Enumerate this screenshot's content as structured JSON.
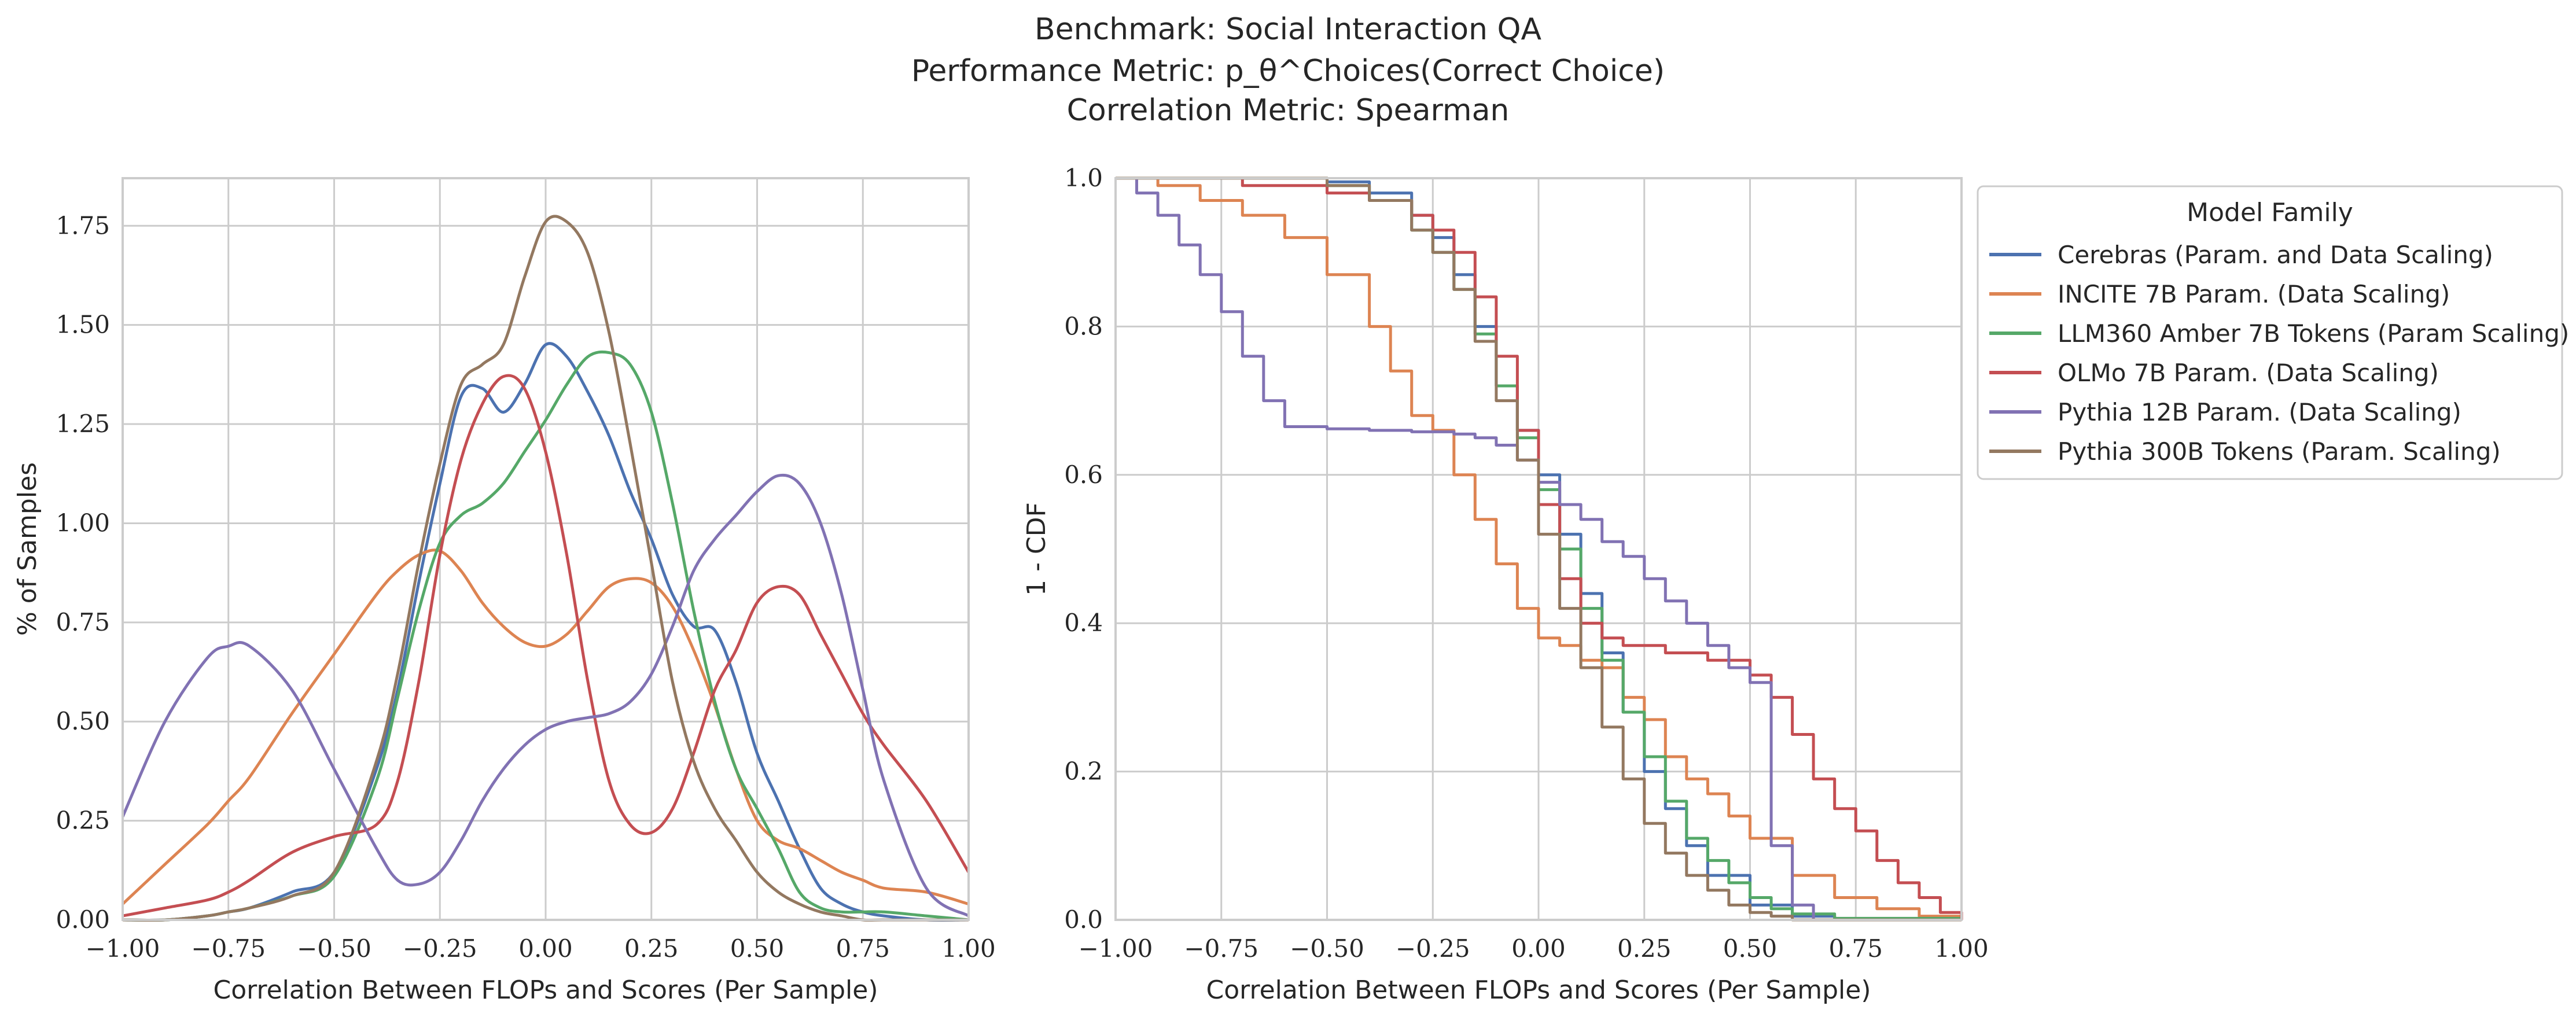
{
  "figure": {
    "title_lines": [
      "Benchmark: Social Interaction QA",
      "Performance Metric: p_θ^Choices(Correct Choice)",
      "Correlation Metric: Spearman"
    ]
  },
  "chart_data": [
    {
      "type": "line",
      "subtype": "kde",
      "title": "",
      "xlabel": "Correlation Between FLOPs and Scores (Per Sample)",
      "ylabel": "% of Samples",
      "xlim": [
        -1.0,
        1.0
      ],
      "ylim": [
        0.0,
        1.87
      ],
      "xticks": [
        "−1.00",
        "−0.75",
        "−0.50",
        "−0.25",
        "0.00",
        "0.25",
        "0.50",
        "0.75",
        "1.00"
      ],
      "xtick_values": [
        -1.0,
        -0.75,
        -0.5,
        -0.25,
        0.0,
        0.25,
        0.5,
        0.75,
        1.0
      ],
      "yticks": [
        "0.00",
        "0.25",
        "0.50",
        "0.75",
        "1.00",
        "1.25",
        "1.50",
        "1.75"
      ],
      "ytick_values": [
        0.0,
        0.25,
        0.5,
        0.75,
        1.0,
        1.25,
        1.5,
        1.75
      ],
      "grid": true,
      "x": [
        -1.0,
        -0.9,
        -0.8,
        -0.75,
        -0.7,
        -0.6,
        -0.5,
        -0.4,
        -0.35,
        -0.3,
        -0.25,
        -0.2,
        -0.15,
        -0.1,
        -0.05,
        0.0,
        0.05,
        0.1,
        0.15,
        0.2,
        0.25,
        0.3,
        0.35,
        0.4,
        0.45,
        0.5,
        0.55,
        0.6,
        0.65,
        0.7,
        0.75,
        0.8,
        0.9,
        1.0
      ],
      "series": [
        {
          "name": "Cerebras (Param. and Data Scaling)",
          "color": "#4c72b0",
          "values": [
            0.0,
            0.0,
            0.01,
            0.02,
            0.03,
            0.07,
            0.12,
            0.38,
            0.58,
            0.85,
            1.1,
            1.32,
            1.34,
            1.28,
            1.35,
            1.45,
            1.42,
            1.33,
            1.22,
            1.08,
            0.96,
            0.82,
            0.74,
            0.73,
            0.6,
            0.42,
            0.3,
            0.18,
            0.08,
            0.04,
            0.02,
            0.01,
            0.0,
            0.0
          ]
        },
        {
          "name": "INCITE 7B Param. (Data Scaling)",
          "color": "#dd8452",
          "values": [
            0.04,
            0.14,
            0.24,
            0.3,
            0.36,
            0.52,
            0.67,
            0.82,
            0.88,
            0.92,
            0.93,
            0.88,
            0.8,
            0.74,
            0.7,
            0.69,
            0.72,
            0.78,
            0.84,
            0.86,
            0.85,
            0.79,
            0.68,
            0.54,
            0.38,
            0.25,
            0.2,
            0.18,
            0.15,
            0.12,
            0.1,
            0.08,
            0.07,
            0.04
          ]
        },
        {
          "name": "LLM360 Amber 7B Tokens (Param Scaling)",
          "color": "#55a868",
          "values": [
            0.0,
            0.0,
            0.01,
            0.02,
            0.03,
            0.06,
            0.11,
            0.35,
            0.56,
            0.78,
            0.95,
            1.02,
            1.05,
            1.1,
            1.18,
            1.26,
            1.35,
            1.42,
            1.43,
            1.4,
            1.28,
            1.05,
            0.78,
            0.55,
            0.38,
            0.28,
            0.18,
            0.07,
            0.03,
            0.02,
            0.02,
            0.02,
            0.01,
            0.0
          ]
        },
        {
          "name": "OLMo 7B Param. (Data Scaling)",
          "color": "#c44e52",
          "values": [
            0.01,
            0.03,
            0.05,
            0.07,
            0.1,
            0.17,
            0.21,
            0.24,
            0.35,
            0.6,
            0.92,
            1.16,
            1.3,
            1.37,
            1.34,
            1.18,
            0.92,
            0.6,
            0.35,
            0.24,
            0.22,
            0.28,
            0.42,
            0.58,
            0.68,
            0.8,
            0.84,
            0.82,
            0.72,
            0.62,
            0.52,
            0.44,
            0.3,
            0.12
          ]
        },
        {
          "name": "Pythia 12B Param. (Data Scaling)",
          "color": "#8172b3",
          "values": [
            0.26,
            0.5,
            0.66,
            0.69,
            0.69,
            0.58,
            0.38,
            0.18,
            0.1,
            0.09,
            0.12,
            0.2,
            0.3,
            0.38,
            0.44,
            0.48,
            0.5,
            0.51,
            0.52,
            0.55,
            0.62,
            0.74,
            0.88,
            0.96,
            1.02,
            1.08,
            1.12,
            1.1,
            1.0,
            0.82,
            0.58,
            0.35,
            0.08,
            0.01
          ]
        },
        {
          "name": "Pythia 300B Tokens (Param. Scaling)",
          "color": "#937860",
          "values": [
            0.0,
            0.0,
            0.01,
            0.02,
            0.03,
            0.06,
            0.12,
            0.4,
            0.62,
            0.9,
            1.15,
            1.35,
            1.4,
            1.45,
            1.62,
            1.76,
            1.76,
            1.68,
            1.48,
            1.2,
            0.9,
            0.6,
            0.4,
            0.28,
            0.2,
            0.12,
            0.07,
            0.04,
            0.02,
            0.01,
            0.0,
            0.0,
            0.0,
            0.0
          ]
        }
      ]
    },
    {
      "type": "line",
      "subtype": "step",
      "title": "",
      "xlabel": "Correlation Between FLOPs and Scores (Per Sample)",
      "ylabel": "1 - CDF",
      "xlim": [
        -1.0,
        1.0
      ],
      "ylim": [
        0.0,
        1.0
      ],
      "xticks": [
        "−1.00",
        "−0.75",
        "−0.50",
        "−0.25",
        "0.00",
        "0.25",
        "0.50",
        "0.75",
        "1.00"
      ],
      "xtick_values": [
        -1.0,
        -0.75,
        -0.5,
        -0.25,
        0.0,
        0.25,
        0.5,
        0.75,
        1.0
      ],
      "yticks": [
        "0.0",
        "0.2",
        "0.4",
        "0.6",
        "0.8",
        "1.0"
      ],
      "ytick_values": [
        0.0,
        0.2,
        0.4,
        0.6,
        0.8,
        1.0
      ],
      "grid": true,
      "legend": {
        "title": "Model Family",
        "placement": "outside-right-top"
      },
      "series": [
        {
          "name": "Cerebras (Param. and Data Scaling)",
          "color": "#4c72b0",
          "x": [
            -1.0,
            -0.5,
            -0.4,
            -0.3,
            -0.25,
            -0.2,
            -0.15,
            -0.1,
            -0.05,
            0.0,
            0.05,
            0.1,
            0.15,
            0.2,
            0.25,
            0.3,
            0.35,
            0.4,
            0.5,
            0.6,
            0.7,
            1.0
          ],
          "y": [
            1.0,
            0.995,
            0.98,
            0.95,
            0.92,
            0.87,
            0.8,
            0.72,
            0.66,
            0.6,
            0.52,
            0.44,
            0.36,
            0.28,
            0.2,
            0.15,
            0.1,
            0.06,
            0.02,
            0.005,
            0.0,
            0.0
          ]
        },
        {
          "name": "INCITE 7B Param. (Data Scaling)",
          "color": "#dd8452",
          "x": [
            -1.0,
            -0.9,
            -0.8,
            -0.7,
            -0.6,
            -0.5,
            -0.4,
            -0.35,
            -0.3,
            -0.25,
            -0.2,
            -0.15,
            -0.1,
            -0.05,
            0.0,
            0.05,
            0.1,
            0.15,
            0.2,
            0.25,
            0.3,
            0.35,
            0.4,
            0.45,
            0.5,
            0.6,
            0.7,
            0.8,
            0.9,
            1.0
          ],
          "y": [
            1.0,
            0.99,
            0.97,
            0.95,
            0.92,
            0.87,
            0.8,
            0.74,
            0.68,
            0.66,
            0.6,
            0.54,
            0.48,
            0.42,
            0.38,
            0.37,
            0.35,
            0.34,
            0.3,
            0.27,
            0.22,
            0.19,
            0.17,
            0.14,
            0.11,
            0.06,
            0.03,
            0.015,
            0.005,
            0.0
          ]
        },
        {
          "name": "LLM360 Amber 7B Tokens (Param Scaling)",
          "color": "#55a868",
          "x": [
            -1.0,
            -0.5,
            -0.4,
            -0.3,
            -0.25,
            -0.2,
            -0.15,
            -0.1,
            -0.05,
            0.0,
            0.05,
            0.1,
            0.15,
            0.2,
            0.25,
            0.3,
            0.35,
            0.4,
            0.45,
            0.5,
            0.55,
            0.6,
            0.7,
            1.0
          ],
          "y": [
            1.0,
            0.99,
            0.97,
            0.93,
            0.9,
            0.85,
            0.79,
            0.72,
            0.65,
            0.58,
            0.5,
            0.42,
            0.35,
            0.28,
            0.22,
            0.16,
            0.11,
            0.08,
            0.05,
            0.03,
            0.015,
            0.008,
            0.002,
            0.0
          ]
        },
        {
          "name": "OLMo 7B Param. (Data Scaling)",
          "color": "#c44e52",
          "x": [
            -1.0,
            -0.7,
            -0.5,
            -0.4,
            -0.3,
            -0.25,
            -0.2,
            -0.15,
            -0.1,
            -0.05,
            0.0,
            0.05,
            0.1,
            0.15,
            0.2,
            0.3,
            0.4,
            0.5,
            0.55,
            0.6,
            0.65,
            0.7,
            0.75,
            0.8,
            0.85,
            0.9,
            0.95,
            1.0
          ],
          "y": [
            1.0,
            0.99,
            0.98,
            0.97,
            0.95,
            0.93,
            0.9,
            0.84,
            0.76,
            0.66,
            0.56,
            0.46,
            0.4,
            0.38,
            0.37,
            0.36,
            0.35,
            0.33,
            0.3,
            0.25,
            0.19,
            0.15,
            0.12,
            0.08,
            0.05,
            0.03,
            0.01,
            0.0
          ]
        },
        {
          "name": "Pythia 12B Param. (Data Scaling)",
          "color": "#8172b3",
          "x": [
            -1.0,
            -0.95,
            -0.9,
            -0.85,
            -0.8,
            -0.75,
            -0.7,
            -0.65,
            -0.6,
            -0.5,
            -0.4,
            -0.3,
            -0.2,
            -0.15,
            -0.1,
            -0.05,
            0.0,
            0.05,
            0.1,
            0.15,
            0.2,
            0.25,
            0.3,
            0.35,
            0.4,
            0.45,
            0.5,
            0.55,
            0.6,
            0.65,
            1.0
          ],
          "y": [
            1.0,
            0.98,
            0.95,
            0.91,
            0.87,
            0.82,
            0.76,
            0.7,
            0.665,
            0.662,
            0.66,
            0.658,
            0.655,
            0.65,
            0.64,
            0.62,
            0.59,
            0.56,
            0.54,
            0.51,
            0.49,
            0.46,
            0.43,
            0.4,
            0.37,
            0.34,
            0.32,
            0.1,
            0.02,
            0.0,
            0.0
          ]
        },
        {
          "name": "Pythia 300B Tokens (Param. Scaling)",
          "color": "#937860",
          "x": [
            -1.0,
            -0.5,
            -0.4,
            -0.3,
            -0.25,
            -0.2,
            -0.15,
            -0.1,
            -0.05,
            0.0,
            0.05,
            0.1,
            0.15,
            0.2,
            0.25,
            0.3,
            0.35,
            0.4,
            0.45,
            0.5,
            0.55,
            0.6,
            1.0
          ],
          "y": [
            1.0,
            0.99,
            0.97,
            0.93,
            0.9,
            0.85,
            0.78,
            0.7,
            0.62,
            0.52,
            0.42,
            0.34,
            0.26,
            0.19,
            0.13,
            0.09,
            0.06,
            0.04,
            0.02,
            0.01,
            0.005,
            0.0,
            0.0
          ]
        }
      ]
    }
  ]
}
